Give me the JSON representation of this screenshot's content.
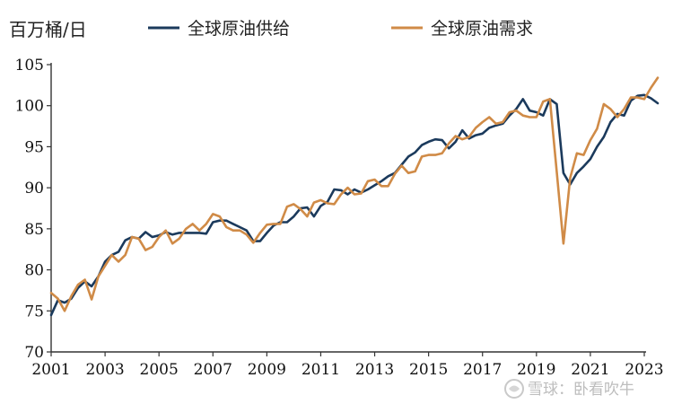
{
  "chart_data": {
    "type": "line",
    "unit_label": "百万桶/日",
    "xlim": [
      2001,
      2023
    ],
    "ylim": [
      70,
      105
    ],
    "x_ticks": [
      "2001",
      "2003",
      "2005",
      "2007",
      "2009",
      "2011",
      "2013",
      "2015",
      "2017",
      "2019",
      "2021",
      "2023"
    ],
    "y_ticks": [
      "70",
      "75",
      "80",
      "85",
      "90",
      "95",
      "100",
      "105"
    ],
    "legend_position": "top",
    "grid": false,
    "series": [
      {
        "name": "全球原油供给",
        "color": "#1b3a5c",
        "points": [
          [
            2001.0,
            74.5
          ],
          [
            2001.25,
            76.3
          ],
          [
            2001.5,
            76.0
          ],
          [
            2001.75,
            76.5
          ],
          [
            2002.0,
            77.8
          ],
          [
            2002.25,
            78.6
          ],
          [
            2002.5,
            78.0
          ],
          [
            2002.75,
            79.2
          ],
          [
            2003.0,
            81.0
          ],
          [
            2003.25,
            81.8
          ],
          [
            2003.5,
            82.2
          ],
          [
            2003.75,
            83.6
          ],
          [
            2004.0,
            84.0
          ],
          [
            2004.25,
            83.8
          ],
          [
            2004.5,
            84.6
          ],
          [
            2004.75,
            84.0
          ],
          [
            2005.0,
            84.2
          ],
          [
            2005.25,
            84.6
          ],
          [
            2005.5,
            84.3
          ],
          [
            2005.75,
            84.5
          ],
          [
            2006.0,
            84.5
          ],
          [
            2006.25,
            84.5
          ],
          [
            2006.5,
            84.5
          ],
          [
            2006.75,
            84.4
          ],
          [
            2007.0,
            85.8
          ],
          [
            2007.25,
            86.0
          ],
          [
            2007.5,
            86.0
          ],
          [
            2007.75,
            85.6
          ],
          [
            2008.0,
            85.2
          ],
          [
            2008.25,
            84.8
          ],
          [
            2008.5,
            83.5
          ],
          [
            2008.75,
            83.5
          ],
          [
            2009.0,
            84.5
          ],
          [
            2009.25,
            85.4
          ],
          [
            2009.5,
            85.8
          ],
          [
            2009.75,
            85.8
          ],
          [
            2010.0,
            86.5
          ],
          [
            2010.25,
            87.5
          ],
          [
            2010.5,
            87.6
          ],
          [
            2010.75,
            86.5
          ],
          [
            2011.0,
            87.8
          ],
          [
            2011.25,
            88.3
          ],
          [
            2011.5,
            89.8
          ],
          [
            2011.75,
            89.7
          ],
          [
            2012.0,
            89.2
          ],
          [
            2012.25,
            89.8
          ],
          [
            2012.5,
            89.4
          ],
          [
            2012.75,
            89.8
          ],
          [
            2013.0,
            90.3
          ],
          [
            2013.25,
            90.8
          ],
          [
            2013.5,
            91.4
          ],
          [
            2013.75,
            91.8
          ],
          [
            2014.0,
            92.8
          ],
          [
            2014.25,
            93.8
          ],
          [
            2014.5,
            94.3
          ],
          [
            2014.75,
            95.2
          ],
          [
            2015.0,
            95.6
          ],
          [
            2015.25,
            95.9
          ],
          [
            2015.5,
            95.8
          ],
          [
            2015.75,
            94.8
          ],
          [
            2016.0,
            95.6
          ],
          [
            2016.25,
            97.0
          ],
          [
            2016.5,
            96.0
          ],
          [
            2016.75,
            96.4
          ],
          [
            2017.0,
            96.6
          ],
          [
            2017.25,
            97.3
          ],
          [
            2017.5,
            97.6
          ],
          [
            2017.75,
            97.8
          ],
          [
            2018.0,
            98.8
          ],
          [
            2018.25,
            99.6
          ],
          [
            2018.5,
            100.8
          ],
          [
            2018.75,
            99.4
          ],
          [
            2019.0,
            99.2
          ],
          [
            2019.25,
            98.8
          ],
          [
            2019.5,
            100.8
          ],
          [
            2019.75,
            100.2
          ],
          [
            2020.0,
            91.8
          ],
          [
            2020.25,
            90.4
          ],
          [
            2020.5,
            91.8
          ],
          [
            2020.75,
            92.6
          ],
          [
            2021.0,
            93.5
          ],
          [
            2021.25,
            95.0
          ],
          [
            2021.5,
            96.2
          ],
          [
            2021.75,
            98.0
          ],
          [
            2022.0,
            99.0
          ],
          [
            2022.25,
            98.8
          ],
          [
            2022.5,
            100.6
          ],
          [
            2022.75,
            101.2
          ],
          [
            2023.0,
            101.3
          ],
          [
            2023.25,
            100.9
          ],
          [
            2023.5,
            100.3
          ]
        ]
      },
      {
        "name": "全球原油需求",
        "color": "#d08b47",
        "points": [
          [
            2001.0,
            77.2
          ],
          [
            2001.25,
            76.5
          ],
          [
            2001.5,
            75.0
          ],
          [
            2001.75,
            76.8
          ],
          [
            2002.0,
            78.2
          ],
          [
            2002.25,
            78.8
          ],
          [
            2002.5,
            76.4
          ],
          [
            2002.75,
            79.2
          ],
          [
            2003.0,
            80.5
          ],
          [
            2003.25,
            81.8
          ],
          [
            2003.5,
            81.0
          ],
          [
            2003.75,
            81.8
          ],
          [
            2004.0,
            84.0
          ],
          [
            2004.25,
            83.8
          ],
          [
            2004.5,
            82.4
          ],
          [
            2004.75,
            82.8
          ],
          [
            2005.0,
            84.0
          ],
          [
            2005.25,
            84.8
          ],
          [
            2005.5,
            83.2
          ],
          [
            2005.75,
            83.8
          ],
          [
            2006.0,
            85.0
          ],
          [
            2006.25,
            85.6
          ],
          [
            2006.5,
            84.8
          ],
          [
            2006.75,
            85.6
          ],
          [
            2007.0,
            86.8
          ],
          [
            2007.25,
            86.5
          ],
          [
            2007.5,
            85.2
          ],
          [
            2007.75,
            84.8
          ],
          [
            2008.0,
            84.8
          ],
          [
            2008.25,
            84.3
          ],
          [
            2008.5,
            83.3
          ],
          [
            2008.75,
            84.5
          ],
          [
            2009.0,
            85.5
          ],
          [
            2009.25,
            85.6
          ],
          [
            2009.5,
            85.6
          ],
          [
            2009.75,
            87.7
          ],
          [
            2010.0,
            88.0
          ],
          [
            2010.25,
            87.4
          ],
          [
            2010.5,
            86.5
          ],
          [
            2010.75,
            88.2
          ],
          [
            2011.0,
            88.5
          ],
          [
            2011.25,
            88.1
          ],
          [
            2011.5,
            88.0
          ],
          [
            2011.75,
            89.2
          ],
          [
            2012.0,
            90.0
          ],
          [
            2012.25,
            89.2
          ],
          [
            2012.5,
            89.3
          ],
          [
            2012.75,
            90.8
          ],
          [
            2013.0,
            91.0
          ],
          [
            2013.25,
            90.2
          ],
          [
            2013.5,
            90.2
          ],
          [
            2013.75,
            91.7
          ],
          [
            2014.0,
            92.7
          ],
          [
            2014.25,
            91.8
          ],
          [
            2014.5,
            92.0
          ],
          [
            2014.75,
            93.8
          ],
          [
            2015.0,
            94.0
          ],
          [
            2015.25,
            94.0
          ],
          [
            2015.5,
            94.2
          ],
          [
            2015.75,
            95.4
          ],
          [
            2016.0,
            96.3
          ],
          [
            2016.25,
            95.9
          ],
          [
            2016.5,
            96.2
          ],
          [
            2016.75,
            97.3
          ],
          [
            2017.0,
            98.0
          ],
          [
            2017.25,
            98.6
          ],
          [
            2017.5,
            97.8
          ],
          [
            2017.75,
            98.0
          ],
          [
            2018.0,
            99.2
          ],
          [
            2018.25,
            99.4
          ],
          [
            2018.5,
            98.8
          ],
          [
            2018.75,
            98.6
          ],
          [
            2019.0,
            98.6
          ],
          [
            2019.25,
            100.5
          ],
          [
            2019.5,
            100.8
          ],
          [
            2019.75,
            92.0
          ],
          [
            2020.0,
            83.2
          ],
          [
            2020.25,
            91.2
          ],
          [
            2020.5,
            94.2
          ],
          [
            2020.75,
            94.0
          ],
          [
            2021.0,
            95.8
          ],
          [
            2021.25,
            97.2
          ],
          [
            2021.5,
            100.2
          ],
          [
            2021.75,
            99.6
          ],
          [
            2022.0,
            98.6
          ],
          [
            2022.25,
            99.6
          ],
          [
            2022.5,
            101.0
          ],
          [
            2022.75,
            101.0
          ],
          [
            2023.0,
            100.8
          ],
          [
            2023.25,
            102.2
          ],
          [
            2023.5,
            103.4
          ]
        ]
      }
    ]
  },
  "watermark": {
    "icon": "snowball-icon",
    "text": "雪球：卧看吹牛"
  }
}
